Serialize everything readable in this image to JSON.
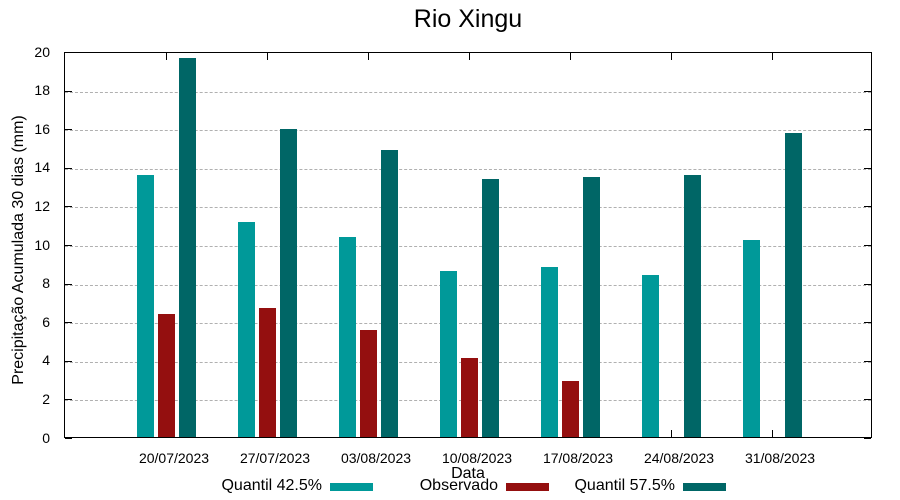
{
  "title": "Rio Xingu",
  "colors": {
    "quantil_low": "#009999",
    "observado": "#940f0f",
    "quantil_high": "#006666",
    "grid": "#b0b0b0",
    "axis": "#000000",
    "background": "#ffffff"
  },
  "chart_data": {
    "type": "bar",
    "title": "Rio Xingu",
    "xlabel": "Data",
    "ylabel": "Precipitação Acumulada 30 dias (mm)",
    "ylim": [
      0,
      20
    ],
    "yticks": [
      0,
      2,
      4,
      6,
      8,
      10,
      12,
      14,
      16,
      18,
      20
    ],
    "grid": true,
    "legend_position": "below",
    "categories": [
      "20/07/2023",
      "27/07/2023",
      "03/08/2023",
      "10/08/2023",
      "17/08/2023",
      "24/08/2023",
      "31/08/2023"
    ],
    "series": [
      {
        "name": "Quantil 42.5%",
        "color": "#009999",
        "values": [
          13.6,
          11.15,
          10.35,
          8.6,
          8.8,
          8.4,
          10.2
        ]
      },
      {
        "name": "Observado",
        "color": "#940f0f",
        "values": [
          6.35,
          6.7,
          5.55,
          4.1,
          2.9,
          null,
          null
        ]
      },
      {
        "name": "Quantil 57.5%",
        "color": "#006666",
        "values": [
          19.65,
          15.95,
          14.85,
          13.35,
          13.45,
          13.6,
          15.75
        ]
      }
    ]
  }
}
